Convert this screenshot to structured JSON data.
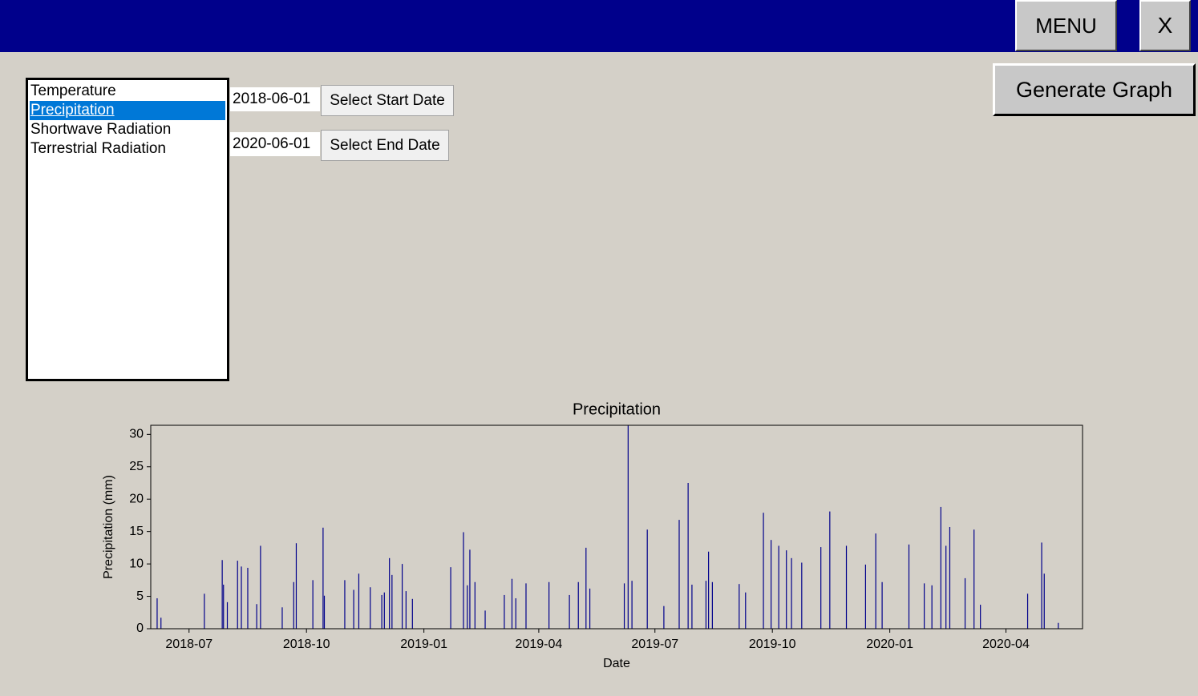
{
  "header": {
    "menu_button": "MENU",
    "close_button": "X"
  },
  "controls": {
    "variables": [
      "Temperature",
      "Precipitation",
      "Shortwave Radiation",
      "Terrestrial Radiation"
    ],
    "selected_variable": 1,
    "start_date": "2018-06-01",
    "start_button": "Select Start Date",
    "end_date": "2020-06-01",
    "end_button": "Select End Date",
    "generate_button": "Generate Graph"
  },
  "chart_data": {
    "type": "bar",
    "title": "Precipitation",
    "x_label": "Date",
    "y_label": "Precipitation (mm)",
    "color": "#00008b",
    "x": [
      "2018-06-06",
      "2018-06-09",
      "2018-07-13",
      "2018-07-27",
      "2018-07-28",
      "2018-07-31",
      "2018-08-08",
      "2018-08-11",
      "2018-08-16",
      "2018-08-23",
      "2018-08-26",
      "2018-09-12",
      "2018-09-21",
      "2018-09-23",
      "2018-10-06",
      "2018-10-14",
      "2018-10-15",
      "2018-10-31",
      "2018-11-07",
      "2018-11-11",
      "2018-11-20",
      "2018-11-29",
      "2018-12-01",
      "2018-12-05",
      "2018-12-07",
      "2018-12-15",
      "2018-12-18",
      "2018-12-23",
      "2019-01-22",
      "2019-02-01",
      "2019-02-04",
      "2019-02-06",
      "2019-02-10",
      "2019-02-18",
      "2019-03-05",
      "2019-03-11",
      "2019-03-14",
      "2019-03-22",
      "2019-04-09",
      "2019-04-25",
      "2019-05-02",
      "2019-05-08",
      "2019-05-11",
      "2019-06-07",
      "2019-06-10",
      "2019-06-13",
      "2019-06-25",
      "2019-07-08",
      "2019-07-20",
      "2019-07-27",
      "2019-07-30",
      "2019-08-10",
      "2019-08-12",
      "2019-08-15",
      "2019-09-05",
      "2019-09-10",
      "2019-09-24",
      "2019-09-30",
      "2019-10-06",
      "2019-10-12",
      "2019-10-16",
      "2019-10-24",
      "2019-11-08",
      "2019-11-15",
      "2019-11-28",
      "2019-12-13",
      "2019-12-21",
      "2019-12-26",
      "2020-01-16",
      "2020-01-28",
      "2020-02-03",
      "2020-02-10",
      "2020-02-14",
      "2020-02-17",
      "2020-02-29",
      "2020-03-07",
      "2020-03-12",
      "2020-04-18",
      "2020-04-29",
      "2020-05-01",
      "2020-05-12"
    ],
    "values": [
      4.7,
      1.7,
      5.4,
      10.6,
      6.8,
      4.1,
      10.5,
      9.6,
      9.4,
      3.8,
      12.8,
      3.3,
      7.2,
      13.2,
      7.5,
      15.6,
      5.1,
      7.5,
      6.0,
      8.5,
      6.4,
      5.2,
      5.6,
      10.9,
      8.3,
      10.0,
      5.8,
      4.6,
      9.5,
      14.9,
      6.7,
      12.2,
      7.2,
      2.8,
      5.2,
      7.7,
      4.7,
      7.0,
      7.2,
      5.2,
      7.2,
      12.5,
      6.2,
      7.0,
      31.4,
      7.4,
      15.3,
      3.5,
      16.8,
      22.5,
      6.8,
      7.4,
      11.9,
      7.2,
      6.9,
      5.6,
      17.9,
      13.7,
      12.8,
      12.1,
      10.9,
      10.2,
      12.6,
      18.1,
      12.8,
      9.9,
      14.7,
      7.2,
      13.0,
      7.0,
      6.7,
      18.8,
      12.8,
      15.7,
      7.8,
      15.3,
      3.7,
      5.4,
      13.3,
      8.5,
      0.9
    ],
    "xlim": [
      "2018-06-01",
      "2020-05-31"
    ],
    "xticks": [
      {
        "value": "2018-07-01",
        "label": "2018-07"
      },
      {
        "value": "2018-10-01",
        "label": "2018-10"
      },
      {
        "value": "2019-01-01",
        "label": "2019-01"
      },
      {
        "value": "2019-04-01",
        "label": "2019-04"
      },
      {
        "value": "2019-07-01",
        "label": "2019-07"
      },
      {
        "value": "2019-10-01",
        "label": "2019-10"
      },
      {
        "value": "2020-01-01",
        "label": "2020-01"
      },
      {
        "value": "2020-04-01",
        "label": "2020-04"
      }
    ],
    "ylim": [
      0,
      31.4
    ],
    "yticks": [
      0,
      5,
      10,
      15,
      20,
      25,
      30
    ]
  }
}
